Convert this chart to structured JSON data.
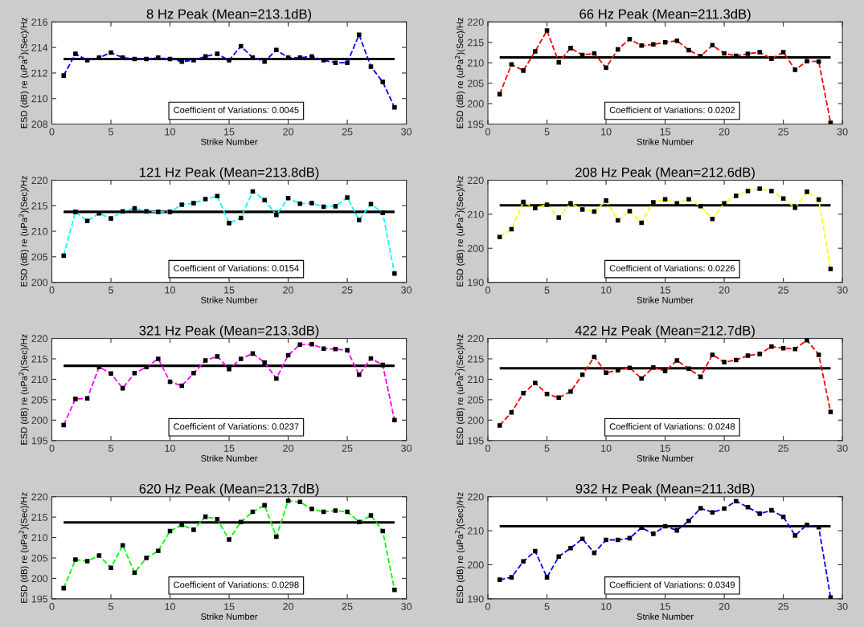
{
  "chart_data": [
    {
      "type": "line",
      "title": "8 Hz Peak (Mean=213.1dB)",
      "xlabel": "Strike Number",
      "ylabel": "ESD (dB) re (uPa$^{2}$)(Sec)/Hz",
      "x": [
        1,
        2,
        3,
        4,
        5,
        6,
        7,
        8,
        9,
        10,
        11,
        12,
        13,
        14,
        15,
        16,
        17,
        18,
        19,
        20,
        21,
        22,
        23,
        24,
        25,
        26,
        27,
        28,
        29
      ],
      "xlim": [
        0,
        30
      ],
      "xticks": [
        0,
        5,
        10,
        15,
        20,
        25,
        30
      ],
      "ylim": [
        208,
        216
      ],
      "yticks": [
        208,
        210,
        212,
        214,
        216
      ],
      "marker": "square",
      "line_style": "dashed",
      "series": [
        {
          "color": "#0000ff",
          "values": [
            211.8,
            213.5,
            213.0,
            213.2,
            213.6,
            213.2,
            213.1,
            213.1,
            213.2,
            213.1,
            212.9,
            213.0,
            213.3,
            213.5,
            213.0,
            214.1,
            213.2,
            212.9,
            213.8,
            213.2,
            213.2,
            213.3,
            213.0,
            212.8,
            212.8,
            215.0,
            212.5,
            211.3,
            209.3
          ]
        }
      ],
      "ref_lines": [
        {
          "axis": "y",
          "value": 213.1,
          "color": "#000000"
        }
      ],
      "annotations": [
        "Coefficient of Variations: 0.0045"
      ]
    },
    {
      "type": "line",
      "title": "66 Hz Peak (Mean=211.3dB)",
      "xlabel": "Strike Number",
      "ylabel": "ESD (dB) re (uPa$^{2}$)(Sec)/Hz",
      "x": [
        1,
        2,
        3,
        4,
        5,
        6,
        7,
        8,
        9,
        10,
        11,
        12,
        13,
        14,
        15,
        16,
        17,
        18,
        19,
        20,
        21,
        22,
        23,
        24,
        25,
        26,
        27,
        28,
        29
      ],
      "xlim": [
        0,
        30
      ],
      "xticks": [
        0,
        5,
        10,
        15,
        20,
        25,
        30
      ],
      "ylim": [
        195,
        220
      ],
      "yticks": [
        195,
        200,
        205,
        210,
        215,
        220
      ],
      "marker": "square",
      "line_style": "dashed",
      "series": [
        {
          "color": "#ff0000",
          "values": [
            202.3,
            209.6,
            208.1,
            212.8,
            217.9,
            210.1,
            213.6,
            211.9,
            212.3,
            208.8,
            213.3,
            215.8,
            214.2,
            214.5,
            215.0,
            215.4,
            213.1,
            211.6,
            214.3,
            212.3,
            211.7,
            212.2,
            212.6,
            211.0,
            212.6,
            208.3,
            210.4,
            210.3,
            195.3
          ]
        }
      ],
      "ref_lines": [
        {
          "axis": "y",
          "value": 211.3,
          "color": "#000000"
        }
      ],
      "annotations": [
        "Coefficient of Variations: 0.0202"
      ]
    },
    {
      "type": "line",
      "title": "121 Hz Peak (Mean=213.8dB)",
      "xlabel": "Strike Number",
      "ylabel": "ESD (dB) re (uPa$^{2}$)(Sec)/Hz",
      "x": [
        1,
        2,
        3,
        4,
        5,
        6,
        7,
        8,
        9,
        10,
        11,
        12,
        13,
        14,
        15,
        16,
        17,
        18,
        19,
        20,
        21,
        22,
        23,
        24,
        25,
        26,
        27,
        28,
        29
      ],
      "xlim": [
        0,
        30
      ],
      "xticks": [
        0,
        5,
        10,
        15,
        20,
        25,
        30
      ],
      "ylim": [
        200,
        220
      ],
      "yticks": [
        200,
        205,
        210,
        215,
        220
      ],
      "marker": "square",
      "line_style": "dashed",
      "series": [
        {
          "color": "#00ffff",
          "values": [
            205.2,
            213.8,
            212.0,
            213.5,
            212.5,
            213.9,
            214.5,
            213.9,
            213.8,
            213.8,
            215.2,
            215.5,
            216.3,
            216.9,
            211.6,
            212.6,
            217.8,
            216.1,
            213.2,
            216.5,
            215.4,
            215.5,
            214.8,
            214.9,
            216.6,
            212.2,
            215.3,
            213.6,
            201.7
          ]
        }
      ],
      "ref_lines": [
        {
          "axis": "y",
          "value": 213.8,
          "color": "#000000"
        }
      ],
      "annotations": [
        "Coefficient of Variations: 0.0154"
      ]
    },
    {
      "type": "line",
      "title": "208 Hz Peak (Mean=212.6dB)",
      "xlabel": "Strike Number",
      "ylabel": "ESD (dB) re (uPa$^{2}$)(Sec)/Hz",
      "x": [
        1,
        2,
        3,
        4,
        5,
        6,
        7,
        8,
        9,
        10,
        11,
        12,
        13,
        14,
        15,
        16,
        17,
        18,
        19,
        20,
        21,
        22,
        23,
        24,
        25,
        26,
        27,
        28,
        29
      ],
      "xlim": [
        0,
        30
      ],
      "xticks": [
        0,
        5,
        10,
        15,
        20,
        25,
        30
      ],
      "ylim": [
        190,
        220
      ],
      "yticks": [
        190,
        200,
        210,
        220
      ],
      "marker": "square",
      "line_style": "dashed",
      "series": [
        {
          "color": "#ffff00",
          "values": [
            203.3,
            205.6,
            213.6,
            211.8,
            212.8,
            209.0,
            213.2,
            211.4,
            210.8,
            214.0,
            208.2,
            210.9,
            207.5,
            213.5,
            214.4,
            213.2,
            214.4,
            212.4,
            208.6,
            213.2,
            215.4,
            216.8,
            217.5,
            216.8,
            214.6,
            211.9,
            216.6,
            214.3,
            193.9
          ]
        }
      ],
      "ref_lines": [
        {
          "axis": "y",
          "value": 212.6,
          "color": "#000000"
        }
      ],
      "annotations": [
        "Coefficient of Variations: 0.0226"
      ]
    },
    {
      "type": "line",
      "title": "321 Hz Peak (Mean=213.3dB)",
      "xlabel": "Strike Number",
      "ylabel": "ESD (dB) re (uPa$^{2}$)(Sec)/Hz",
      "x": [
        1,
        2,
        3,
        4,
        5,
        6,
        7,
        8,
        9,
        10,
        11,
        12,
        13,
        14,
        15,
        16,
        17,
        18,
        19,
        20,
        21,
        22,
        23,
        24,
        25,
        26,
        27,
        28,
        29
      ],
      "xlim": [
        0,
        30
      ],
      "xticks": [
        0,
        5,
        10,
        15,
        20,
        25,
        30
      ],
      "ylim": [
        195,
        220
      ],
      "yticks": [
        195,
        200,
        205,
        210,
        215,
        220
      ],
      "marker": "square",
      "line_style": "dashed",
      "series": [
        {
          "color": "#ff00ff",
          "values": [
            198.8,
            205.2,
            205.3,
            213.0,
            211.4,
            207.8,
            211.5,
            213.0,
            215.0,
            209.4,
            208.4,
            211.5,
            214.6,
            215.6,
            212.5,
            215.0,
            216.3,
            214.1,
            210.2,
            215.9,
            218.5,
            218.6,
            217.5,
            217.4,
            217.1,
            211.1,
            215.1,
            213.5,
            200.0
          ]
        }
      ],
      "ref_lines": [
        {
          "axis": "y",
          "value": 213.3,
          "color": "#000000"
        }
      ],
      "annotations": [
        "Coefficient of Variations: 0.0237"
      ]
    },
    {
      "type": "line",
      "title": "422 Hz Peak (Mean=212.7dB)",
      "xlabel": "Strike Number",
      "ylabel": "ESD (dB) re (uPa$^{2}$)(Sec)/Hz",
      "x": [
        1,
        2,
        3,
        4,
        5,
        6,
        7,
        8,
        9,
        10,
        11,
        12,
        13,
        14,
        15,
        16,
        17,
        18,
        19,
        20,
        21,
        22,
        23,
        24,
        25,
        26,
        27,
        28,
        29
      ],
      "xlim": [
        0,
        30
      ],
      "xticks": [
        0,
        5,
        10,
        15,
        20,
        25,
        30
      ],
      "ylim": [
        195,
        220
      ],
      "yticks": [
        195,
        200,
        205,
        210,
        215,
        220
      ],
      "marker": "square",
      "line_style": "dashed",
      "series": [
        {
          "color": "#ff0000",
          "values": [
            198.7,
            201.9,
            206.6,
            209.1,
            206.4,
            205.5,
            207.0,
            211.1,
            215.5,
            211.6,
            212.2,
            212.8,
            210.2,
            212.9,
            212.0,
            214.6,
            212.6,
            210.6,
            216.0,
            214.2,
            214.7,
            215.8,
            216.2,
            218.0,
            217.6,
            217.4,
            219.6,
            216.0,
            202.0
          ]
        }
      ],
      "ref_lines": [
        {
          "axis": "y",
          "value": 212.7,
          "color": "#000000"
        }
      ],
      "annotations": [
        "Coefficient of Variations: 0.0248"
      ]
    },
    {
      "type": "line",
      "title": "620 Hz Peak (Mean=213.7dB)",
      "xlabel": "Strike Number",
      "ylabel": "ESD (dB) re (uPa$^{2}$)(Sec)/Hz",
      "x": [
        1,
        2,
        3,
        4,
        5,
        6,
        7,
        8,
        9,
        10,
        11,
        12,
        13,
        14,
        15,
        16,
        17,
        18,
        19,
        20,
        21,
        22,
        23,
        24,
        25,
        26,
        27,
        28,
        29
      ],
      "xlim": [
        0,
        30
      ],
      "xticks": [
        0,
        5,
        10,
        15,
        20,
        25,
        30
      ],
      "ylim": [
        195,
        220
      ],
      "yticks": [
        195,
        200,
        205,
        210,
        215,
        220
      ],
      "marker": "square",
      "line_style": "dashed",
      "series": [
        {
          "color": "#00ff00",
          "values": [
            197.6,
            204.6,
            204.2,
            205.6,
            202.6,
            208.1,
            201.4,
            205.0,
            206.7,
            211.6,
            213.1,
            211.9,
            215.1,
            214.5,
            209.5,
            213.8,
            216.3,
            217.9,
            210.2,
            219.0,
            218.7,
            217.0,
            216.3,
            216.6,
            216.3,
            213.8,
            215.4,
            211.6,
            197.2
          ]
        }
      ],
      "ref_lines": [
        {
          "axis": "y",
          "value": 213.7,
          "color": "#000000"
        }
      ],
      "annotations": [
        "Coefficient of Variations: 0.0298"
      ]
    },
    {
      "type": "line",
      "title": "932 Hz Peak (Mean=211.3dB)",
      "xlabel": "Strike Number",
      "ylabel": "ESD (dB) re (uPa$^{2}$)(Sec)/Hz",
      "x": [
        1,
        2,
        3,
        4,
        5,
        6,
        7,
        8,
        9,
        10,
        11,
        12,
        13,
        14,
        15,
        16,
        17,
        18,
        19,
        20,
        21,
        22,
        23,
        24,
        25,
        26,
        27,
        28,
        29
      ],
      "xlim": [
        0,
        30
      ],
      "xticks": [
        0,
        5,
        10,
        15,
        20,
        25,
        30
      ],
      "ylim": [
        190,
        220
      ],
      "yticks": [
        190,
        200,
        210,
        220
      ],
      "marker": "square",
      "line_style": "dashed",
      "series": [
        {
          "color": "#0000ff",
          "values": [
            195.6,
            196.3,
            201.0,
            204.0,
            196.3,
            202.4,
            204.9,
            207.6,
            203.5,
            207.3,
            207.3,
            207.8,
            210.9,
            209.1,
            211.3,
            210.1,
            212.9,
            216.6,
            215.4,
            216.5,
            218.7,
            216.9,
            215.0,
            216.0,
            214.1,
            208.6,
            211.7,
            211.0,
            190.4
          ]
        }
      ],
      "ref_lines": [
        {
          "axis": "y",
          "value": 211.3,
          "color": "#000000"
        }
      ],
      "annotations": [
        "Coefficient of Variations: 0.0349"
      ]
    }
  ]
}
